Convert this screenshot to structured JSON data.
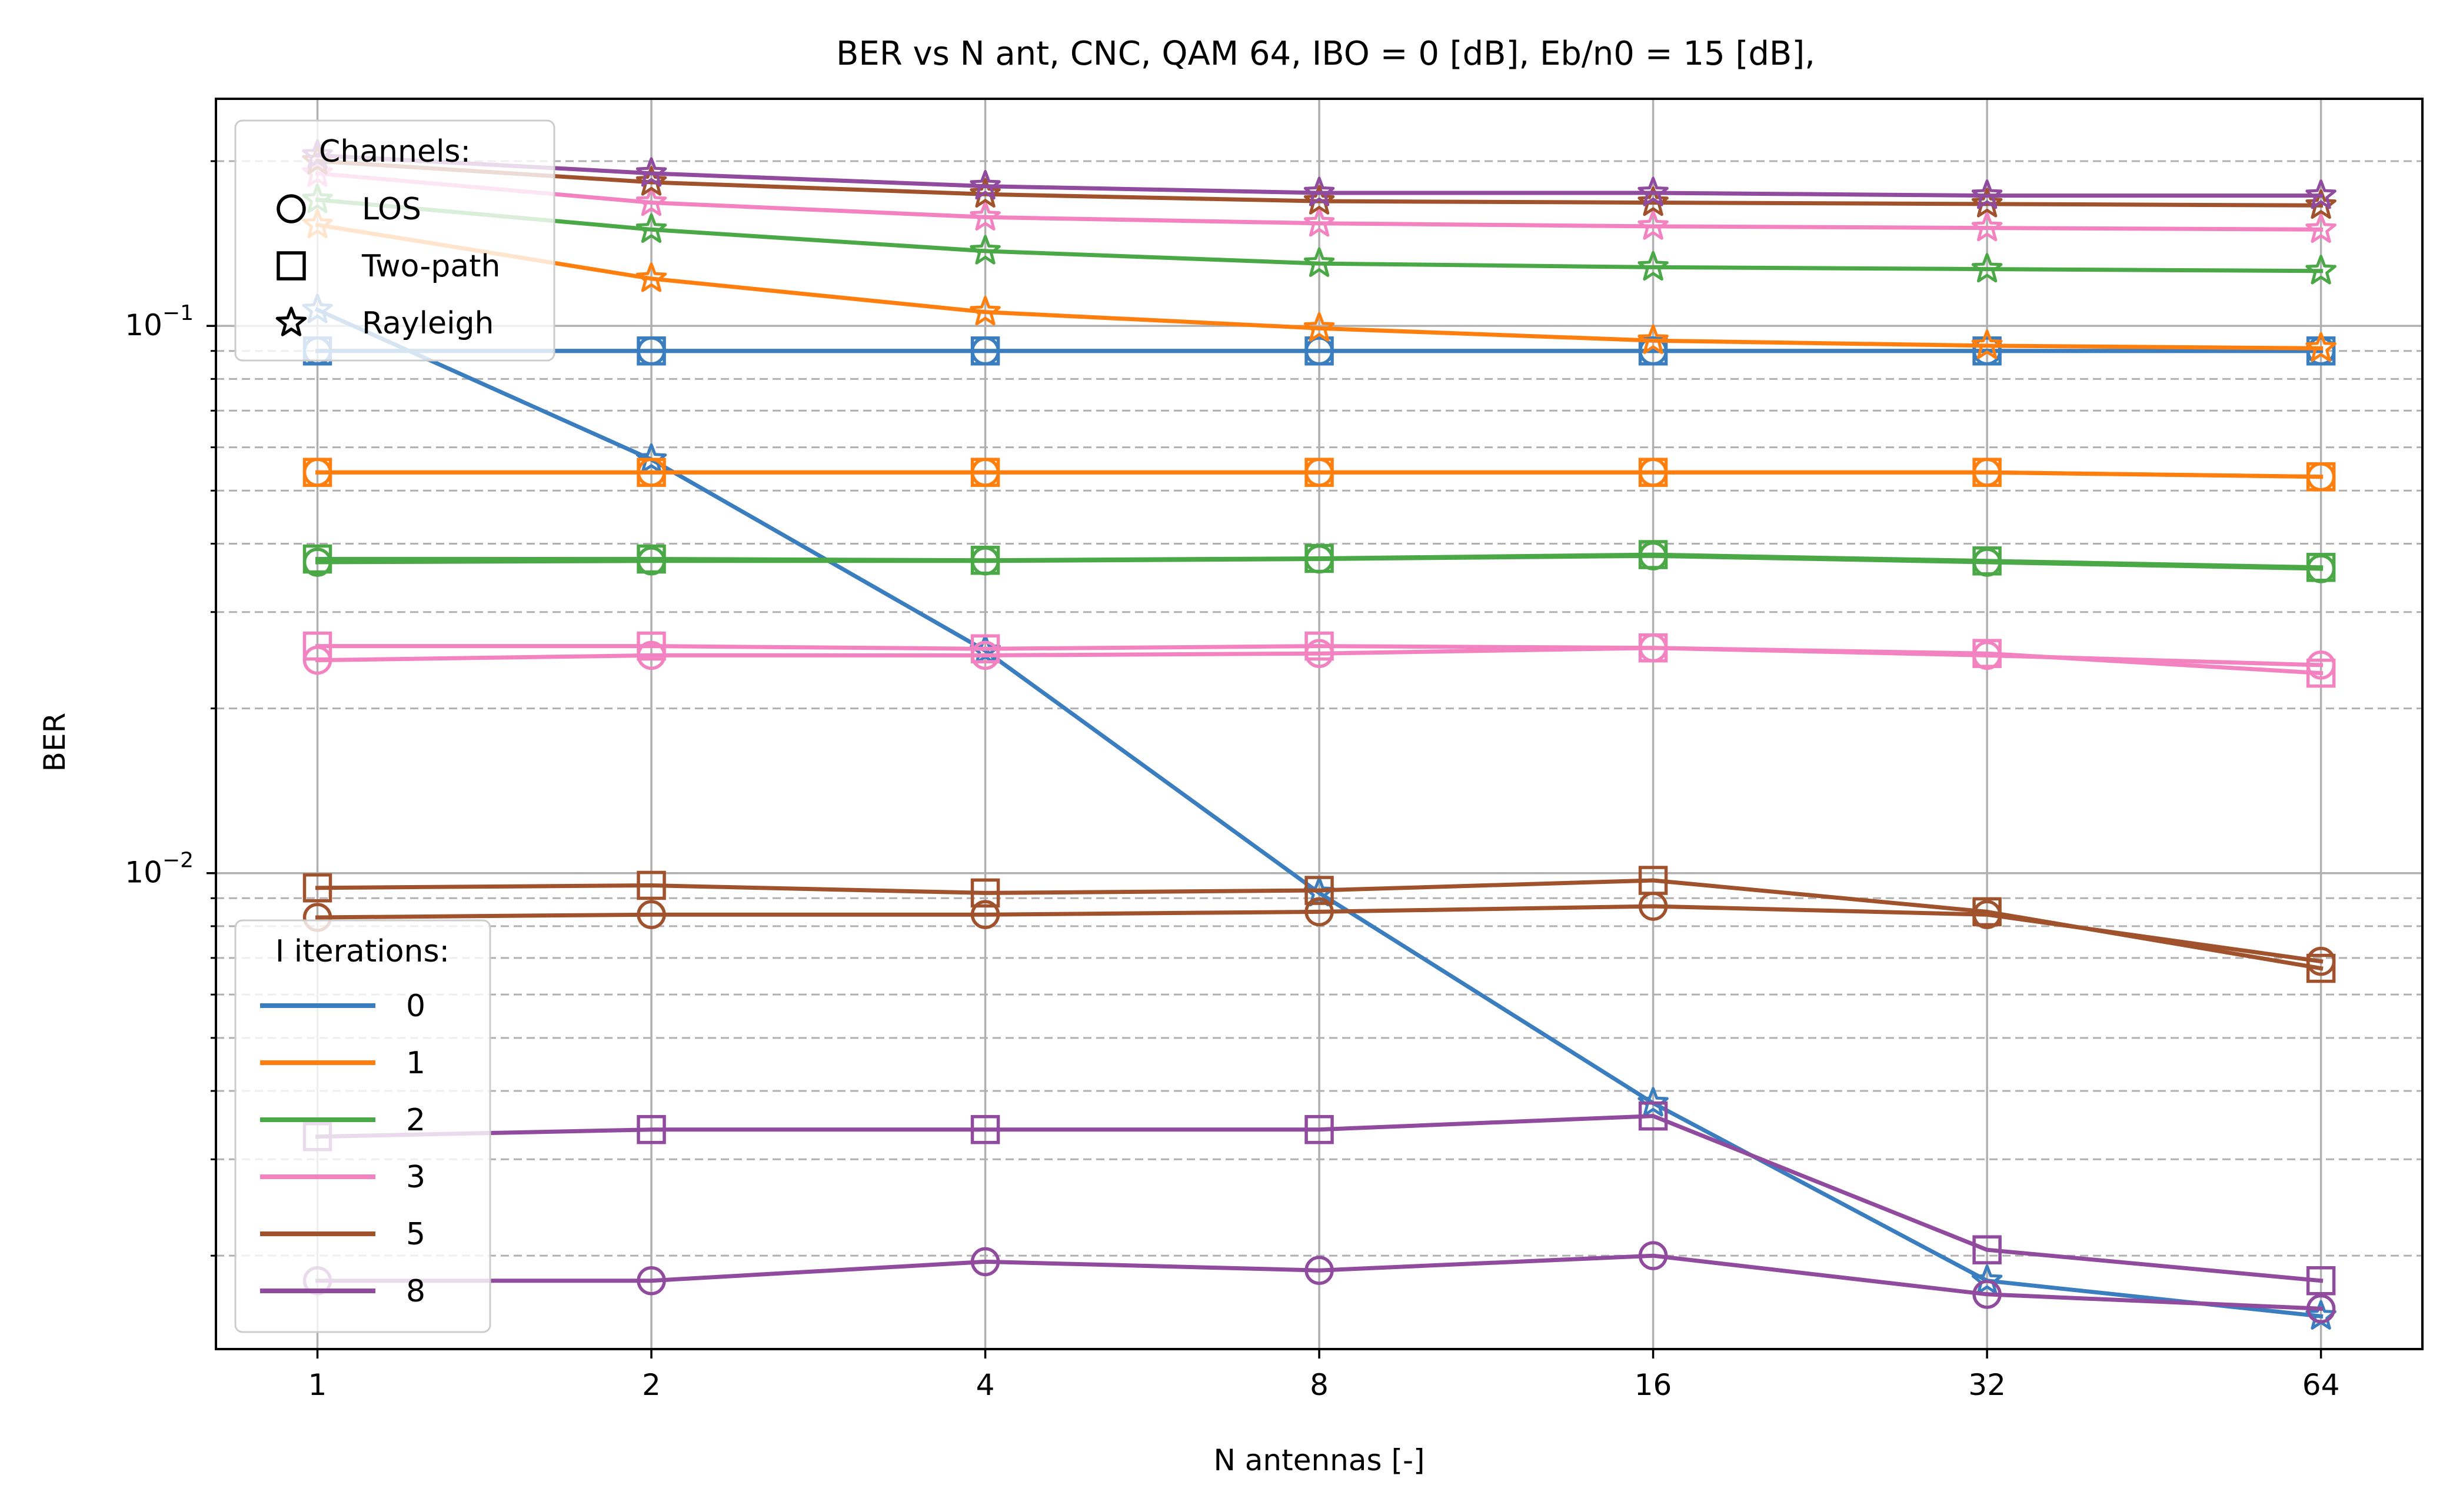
{
  "chart_data": {
    "type": "line",
    "title": "BER vs N ant, CNC, QAM 64, IBO = 0 [dB], Eb/n0 = 15 [dB],",
    "xlabel": "N antennas [-]",
    "ylabel": "BER",
    "x_scale": "log2",
    "y_scale": "log10",
    "x": [
      1,
      2,
      4,
      8,
      16,
      32,
      64
    ],
    "x_tick_labels": [
      "1",
      "2",
      "4",
      "8",
      "16",
      "32",
      "64"
    ],
    "y_ticks": [
      {
        "value": 0.1,
        "base": "10",
        "exp": "−1"
      },
      {
        "value": 0.01,
        "base": "10",
        "exp": "−2"
      }
    ],
    "ylim": [
      0.00135,
      0.26
    ],
    "xlim": [
      0.81,
      79
    ],
    "grid": true,
    "channels_legend": {
      "title": "Channels:",
      "placement": "upper left",
      "entries": [
        {
          "label": "LOS",
          "marker": "circle"
        },
        {
          "label": "Two-path",
          "marker": "square"
        },
        {
          "label": "Rayleigh",
          "marker": "star"
        }
      ]
    },
    "iterations_legend": {
      "title": "I iterations:",
      "placement": "lower left",
      "entries": [
        {
          "label": "0",
          "color": "#3a7ebf"
        },
        {
          "label": "1",
          "color": "#ff7f0e"
        },
        {
          "label": "2",
          "color": "#4aa846"
        },
        {
          "label": "3",
          "color": "#f382c0"
        },
        {
          "label": "5",
          "color": "#a0522d"
        },
        {
          "label": "8",
          "color": "#904a9e"
        }
      ]
    },
    "series": [
      {
        "iteration": "0",
        "channel": "LOS",
        "marker": "circle",
        "color": "#3a7ebf",
        "values": [
          0.09,
          0.09,
          0.09,
          0.09,
          0.09,
          0.09,
          0.09
        ]
      },
      {
        "iteration": "0",
        "channel": "Two-path",
        "marker": "square",
        "color": "#3a7ebf",
        "values": [
          0.09,
          0.09,
          0.09,
          0.09,
          0.09,
          0.09,
          0.09
        ]
      },
      {
        "iteration": "0",
        "channel": "Rayleigh",
        "marker": "star",
        "color": "#3a7ebf",
        "values": [
          0.107,
          0.057,
          0.0255,
          0.0092,
          0.0038,
          0.0018,
          0.00155
        ]
      },
      {
        "iteration": "1",
        "channel": "LOS",
        "marker": "circle",
        "color": "#ff7f0e",
        "values": [
          0.054,
          0.054,
          0.054,
          0.054,
          0.054,
          0.054,
          0.053
        ]
      },
      {
        "iteration": "1",
        "channel": "Two-path",
        "marker": "square",
        "color": "#ff7f0e",
        "values": [
          0.054,
          0.054,
          0.054,
          0.054,
          0.054,
          0.054,
          0.053
        ]
      },
      {
        "iteration": "1",
        "channel": "Rayleigh",
        "marker": "star",
        "color": "#ff7f0e",
        "values": [
          0.153,
          0.122,
          0.106,
          0.099,
          0.094,
          0.092,
          0.091
        ]
      },
      {
        "iteration": "2",
        "channel": "LOS",
        "marker": "circle",
        "color": "#4aa846",
        "values": [
          0.037,
          0.0372,
          0.0372,
          0.0375,
          0.038,
          0.037,
          0.036
        ]
      },
      {
        "iteration": "2",
        "channel": "Two-path",
        "marker": "square",
        "color": "#4aa846",
        "values": [
          0.0375,
          0.0375,
          0.0373,
          0.0376,
          0.0382,
          0.0372,
          0.0362
        ]
      },
      {
        "iteration": "2",
        "channel": "Rayleigh",
        "marker": "star",
        "color": "#4aa846",
        "values": [
          0.17,
          0.15,
          0.137,
          0.13,
          0.128,
          0.127,
          0.126
        ]
      },
      {
        "iteration": "3",
        "channel": "LOS",
        "marker": "circle",
        "color": "#f382c0",
        "values": [
          0.0245,
          0.025,
          0.025,
          0.0252,
          0.0258,
          0.025,
          0.024
        ]
      },
      {
        "iteration": "3",
        "channel": "Two-path",
        "marker": "square",
        "color": "#f382c0",
        "values": [
          0.026,
          0.026,
          0.0257,
          0.026,
          0.0258,
          0.0252,
          0.0232
        ]
      },
      {
        "iteration": "3",
        "channel": "Rayleigh",
        "marker": "star",
        "color": "#f382c0",
        "values": [
          0.19,
          0.168,
          0.158,
          0.154,
          0.152,
          0.151,
          0.15
        ]
      },
      {
        "iteration": "5",
        "channel": "LOS",
        "marker": "circle",
        "color": "#a0522d",
        "values": [
          0.0083,
          0.0084,
          0.0084,
          0.0085,
          0.0087,
          0.0084,
          0.0069
        ]
      },
      {
        "iteration": "5",
        "channel": "Two-path",
        "marker": "square",
        "color": "#a0522d",
        "values": [
          0.0094,
          0.0095,
          0.0092,
          0.0093,
          0.0097,
          0.0085,
          0.0067
        ]
      },
      {
        "iteration": "5",
        "channel": "Rayleigh",
        "marker": "star",
        "color": "#a0522d",
        "values": [
          0.2,
          0.183,
          0.174,
          0.169,
          0.168,
          0.167,
          0.166
        ]
      },
      {
        "iteration": "8",
        "channel": "LOS",
        "marker": "circle",
        "color": "#904a9e",
        "values": [
          0.0018,
          0.0018,
          0.00195,
          0.00188,
          0.002,
          0.0017,
          0.0016
        ]
      },
      {
        "iteration": "8",
        "channel": "Two-path",
        "marker": "square",
        "color": "#904a9e",
        "values": [
          0.0033,
          0.0034,
          0.0034,
          0.0034,
          0.0036,
          0.00205,
          0.0018
        ]
      },
      {
        "iteration": "8",
        "channel": "Rayleigh",
        "marker": "star",
        "color": "#904a9e",
        "values": [
          0.205,
          0.19,
          0.18,
          0.175,
          0.175,
          0.173,
          0.173
        ]
      }
    ]
  }
}
